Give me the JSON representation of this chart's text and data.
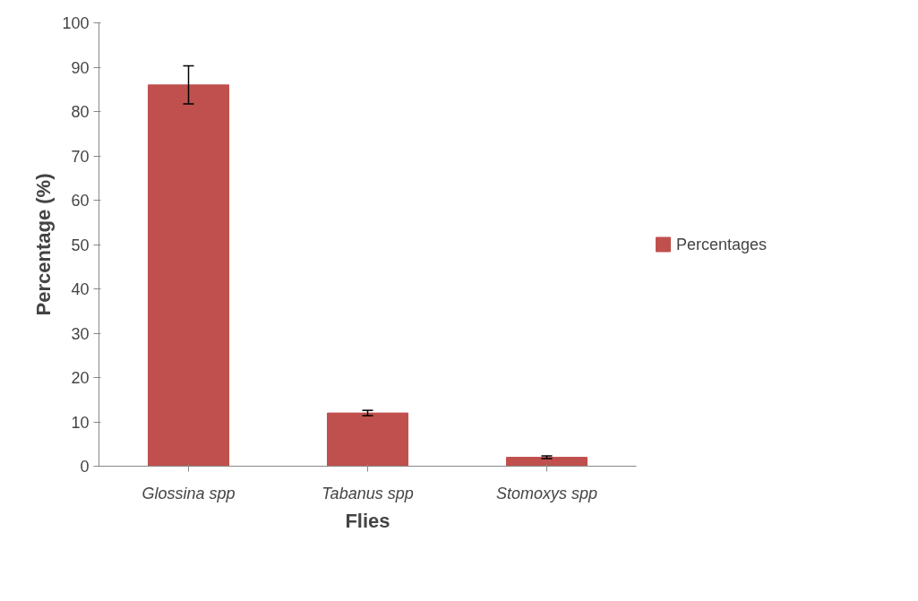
{
  "chart_data": {
    "type": "bar",
    "xlabel": "Flies",
    "ylabel": "Percentage (%)",
    "categories": [
      "Glossina spp",
      "Tabanus spp",
      "Stomoxys spp"
    ],
    "series": [
      {
        "name": "Percentages",
        "color": "#c0504d",
        "values": [
          86,
          12,
          2
        ],
        "errors": [
          4.3,
          0.6,
          0.3
        ]
      }
    ],
    "ylim": [
      0,
      100
    ],
    "yticks": [
      0,
      10,
      20,
      30,
      40,
      50,
      60,
      70,
      80,
      90,
      100
    ],
    "grid": false,
    "legend": "right"
  }
}
